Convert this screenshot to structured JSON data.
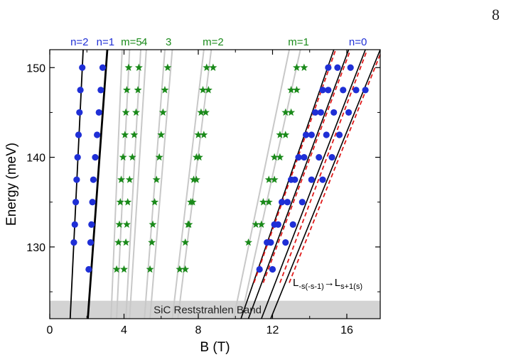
{
  "page": {
    "number": "8"
  },
  "chart_data": {
    "type": "scatter",
    "title": "",
    "xlabel": "B (T)",
    "ylabel": "Energy (meV)",
    "xlim": [
      0,
      17.8
    ],
    "ylim": [
      122,
      152
    ],
    "xticks": [
      0,
      4,
      8,
      12,
      16
    ],
    "yticks": [
      130,
      140,
      150
    ],
    "grid": false,
    "colors": {
      "n_points": "#1f2fd6",
      "m_points": "#1a8a1a",
      "black_line": "#000000",
      "gray_line": "#c8c8c8",
      "red_dash": "#e01a1a",
      "band": "#d3d3d3"
    },
    "band": {
      "label": "SiC Reststrahlen Band",
      "y_range": [
        122,
        124
      ]
    },
    "annotation": {
      "base": "L",
      "sub1": "-s(-s-1)",
      "arrow": "→",
      "base2": "L",
      "sub2": "s+1(s)"
    },
    "top_labels": [
      {
        "text": "n=2",
        "x": 1.6,
        "color": "#1f2fd6"
      },
      {
        "text": "n=1",
        "x": 3.0,
        "color": "#1f2fd6"
      },
      {
        "text": "m=5",
        "x": 4.4,
        "color": "#1a8a1a"
      },
      {
        "text": "4",
        "x": 5.1,
        "color": "#1a8a1a"
      },
      {
        "text": "3",
        "x": 6.4,
        "color": "#1a8a1a"
      },
      {
        "text": "m=2",
        "x": 8.8,
        "color": "#1a8a1a"
      },
      {
        "text": "m=1",
        "x": 13.4,
        "color": "#1a8a1a"
      },
      {
        "text": "n=0",
        "x": 16.6,
        "color": "#1f2fd6"
      }
    ],
    "black_lines": [
      {
        "x1": 1.1,
        "y1": 122,
        "x2": 1.8,
        "y2": 152,
        "width": 1.8
      },
      {
        "x1": 2.05,
        "y1": 122,
        "x2": 3.1,
        "y2": 152,
        "width": 2.8
      },
      {
        "x1": 10.3,
        "y1": 122,
        "x2": 15.3,
        "y2": 152,
        "width": 1.6
      },
      {
        "x1": 10.7,
        "y1": 122,
        "x2": 16.1,
        "y2": 152,
        "width": 1.6
      },
      {
        "x1": 11.4,
        "y1": 122,
        "x2": 17.0,
        "y2": 152,
        "width": 1.6
      },
      {
        "x1": 11.9,
        "y1": 122,
        "x2": 17.8,
        "y2": 152,
        "width": 1.6
      }
    ],
    "red_dashed_lines": [
      {
        "x1": 11.0,
        "y1": 126,
        "x2": 15.4,
        "y2": 152
      },
      {
        "x1": 11.5,
        "y1": 126,
        "x2": 16.2,
        "y2": 152
      },
      {
        "x1": 12.4,
        "y1": 126,
        "x2": 17.1,
        "y2": 152
      },
      {
        "x1": 12.9,
        "y1": 126,
        "x2": 17.9,
        "y2": 152
      }
    ],
    "gray_lines": [
      {
        "x1": 3.3,
        "y1": 122,
        "x2": 3.9,
        "y2": 152
      },
      {
        "x1": 3.6,
        "y1": 122,
        "x2": 4.3,
        "y2": 152
      },
      {
        "x1": 4.1,
        "y1": 122,
        "x2": 4.9,
        "y2": 152
      },
      {
        "x1": 4.3,
        "y1": 122,
        "x2": 5.2,
        "y2": 152
      },
      {
        "x1": 5.1,
        "y1": 122,
        "x2": 6.2,
        "y2": 152
      },
      {
        "x1": 5.4,
        "y1": 122,
        "x2": 6.6,
        "y2": 152
      },
      {
        "x1": 6.6,
        "y1": 122,
        "x2": 8.3,
        "y2": 152
      },
      {
        "x1": 6.9,
        "y1": 122,
        "x2": 8.7,
        "y2": 152
      },
      {
        "x1": 9.9,
        "y1": 122,
        "x2": 12.9,
        "y2": 152
      },
      {
        "x1": 10.3,
        "y1": 122,
        "x2": 13.5,
        "y2": 152
      }
    ],
    "series": [
      {
        "marker": "circle",
        "points": [
          [
            1.75,
            150
          ],
          [
            1.65,
            147.5
          ],
          [
            1.6,
            145
          ],
          [
            1.55,
            142.5
          ],
          [
            1.5,
            140
          ],
          [
            1.45,
            137.5
          ],
          [
            1.4,
            135
          ],
          [
            1.35,
            132.5
          ],
          [
            1.3,
            130.5
          ],
          [
            2.85,
            150
          ],
          [
            2.75,
            147.5
          ],
          [
            2.65,
            145
          ],
          [
            2.55,
            142.5
          ],
          [
            2.45,
            140
          ],
          [
            2.35,
            137.5
          ],
          [
            2.3,
            135
          ],
          [
            2.25,
            132.5
          ],
          [
            2.2,
            130.5
          ],
          [
            2.1,
            127.5
          ],
          [
            11.3,
            127.5
          ],
          [
            11.7,
            130.5
          ],
          [
            12.1,
            132.5
          ],
          [
            12.5,
            135
          ],
          [
            13.0,
            137.5
          ],
          [
            13.4,
            140
          ],
          [
            13.8,
            142.5
          ],
          [
            14.3,
            145
          ],
          [
            14.7,
            147.5
          ],
          [
            15.0,
            150
          ],
          [
            11.9,
            130.5
          ],
          [
            12.3,
            132.5
          ],
          [
            12.8,
            135
          ],
          [
            13.2,
            137.5
          ],
          [
            13.7,
            140
          ],
          [
            14.1,
            142.5
          ],
          [
            14.6,
            145
          ],
          [
            15.0,
            147.5
          ],
          [
            15.5,
            150
          ],
          [
            12.0,
            127.5
          ],
          [
            12.7,
            130.5
          ],
          [
            13.1,
            132.5
          ],
          [
            13.6,
            135
          ],
          [
            14.1,
            137.5
          ],
          [
            14.5,
            140
          ],
          [
            14.9,
            142.5
          ],
          [
            15.3,
            145
          ],
          [
            15.8,
            147.5
          ],
          [
            16.2,
            150
          ],
          [
            14.7,
            137.5
          ],
          [
            15.2,
            140
          ],
          [
            15.6,
            142.5
          ],
          [
            16.1,
            145
          ],
          [
            16.5,
            147.5
          ],
          [
            17.0,
            147.5
          ]
        ]
      },
      {
        "marker": "star",
        "points": [
          [
            3.6,
            127.5
          ],
          [
            3.7,
            130.5
          ],
          [
            3.75,
            132.5
          ],
          [
            3.8,
            135
          ],
          [
            3.85,
            137.5
          ],
          [
            3.95,
            140
          ],
          [
            4.05,
            142.5
          ],
          [
            4.1,
            145
          ],
          [
            4.15,
            147.5
          ],
          [
            4.25,
            150
          ],
          [
            4.0,
            127.5
          ],
          [
            4.1,
            130.5
          ],
          [
            4.15,
            132.5
          ],
          [
            4.2,
            135
          ],
          [
            4.3,
            137.5
          ],
          [
            4.45,
            140
          ],
          [
            4.55,
            142.5
          ],
          [
            4.65,
            145
          ],
          [
            4.75,
            147.5
          ],
          [
            4.8,
            150
          ],
          [
            5.4,
            127.5
          ],
          [
            5.5,
            130.5
          ],
          [
            5.55,
            132.5
          ],
          [
            5.65,
            135
          ],
          [
            5.75,
            137.5
          ],
          [
            5.9,
            140
          ],
          [
            6.0,
            142.5
          ],
          [
            6.1,
            145
          ],
          [
            6.2,
            147.5
          ],
          [
            6.35,
            150
          ],
          [
            7.0,
            127.5
          ],
          [
            7.3,
            130.5
          ],
          [
            7.45,
            132.5
          ],
          [
            7.6,
            135
          ],
          [
            7.75,
            137.5
          ],
          [
            7.9,
            140
          ],
          [
            8.0,
            142.5
          ],
          [
            8.15,
            145
          ],
          [
            8.25,
            147.5
          ],
          [
            8.45,
            150
          ],
          [
            7.3,
            127.5
          ],
          [
            7.5,
            132.5
          ],
          [
            7.7,
            135
          ],
          [
            7.9,
            137.5
          ],
          [
            8.05,
            140
          ],
          [
            8.3,
            142.5
          ],
          [
            8.4,
            145
          ],
          [
            8.55,
            147.5
          ],
          [
            8.8,
            150
          ],
          [
            10.7,
            130.5
          ],
          [
            11.1,
            132.5
          ],
          [
            11.5,
            135
          ],
          [
            11.8,
            137.5
          ],
          [
            12.1,
            140
          ],
          [
            12.4,
            142.5
          ],
          [
            12.7,
            145
          ],
          [
            13.0,
            147.5
          ],
          [
            13.3,
            150
          ],
          [
            11.4,
            132.5
          ],
          [
            11.8,
            135
          ],
          [
            12.1,
            137.5
          ],
          [
            12.4,
            140
          ],
          [
            12.7,
            142.5
          ],
          [
            13.0,
            145
          ],
          [
            13.3,
            147.5
          ],
          [
            13.7,
            150
          ]
        ]
      }
    ]
  }
}
